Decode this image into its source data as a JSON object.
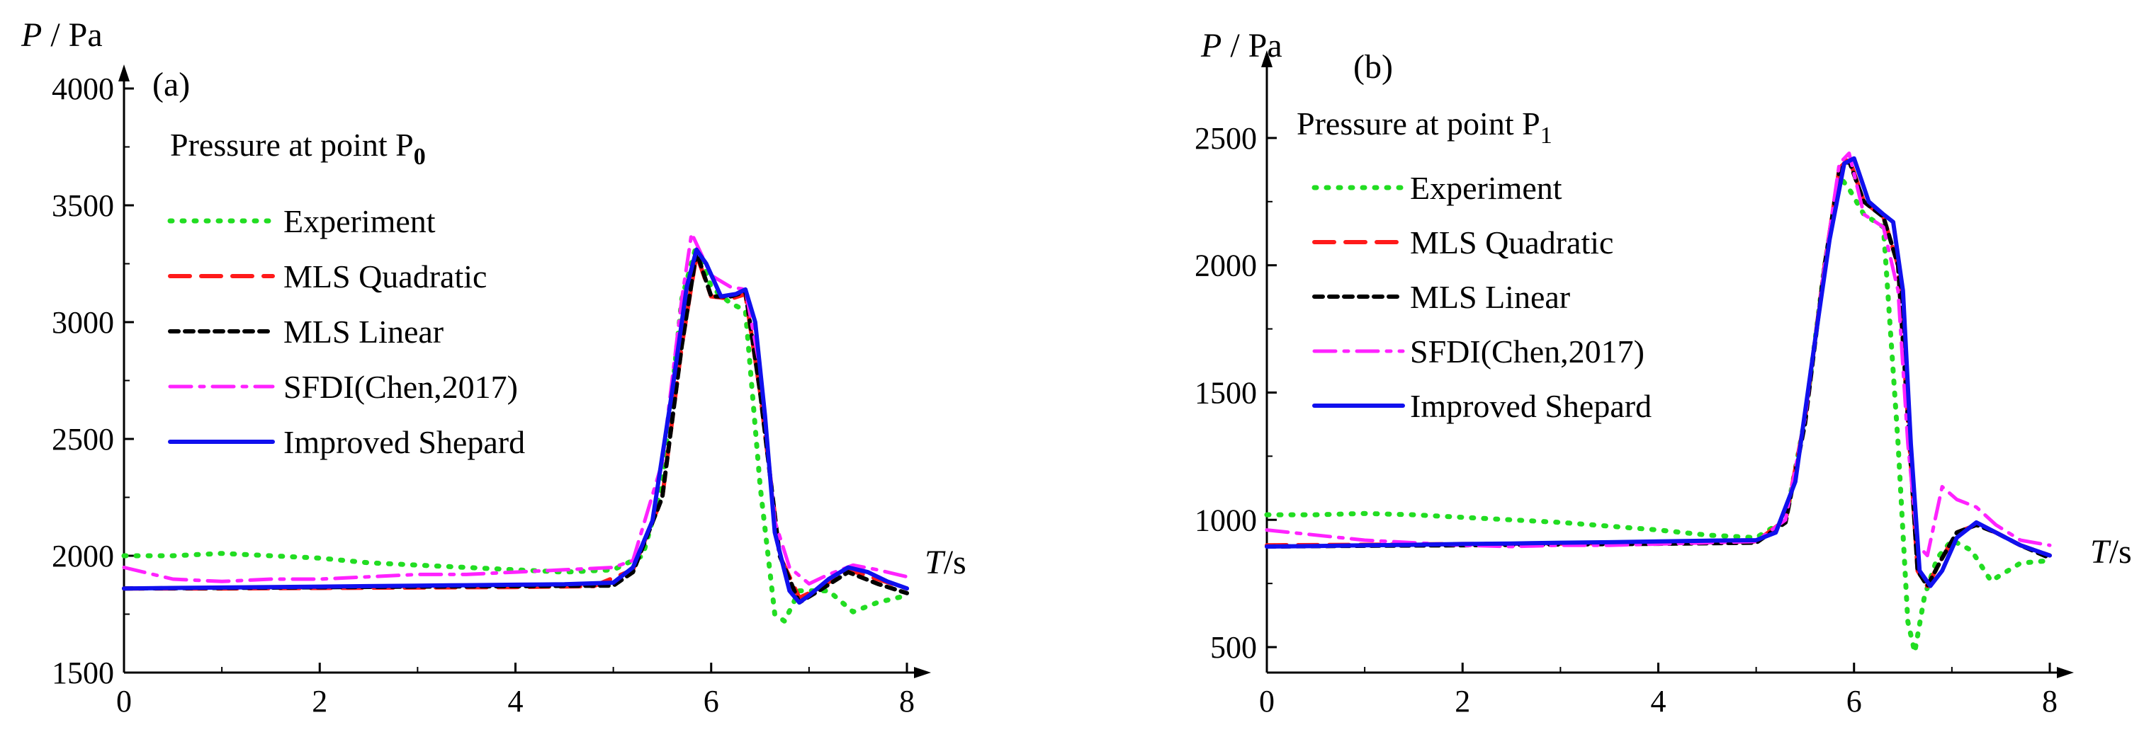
{
  "chart_data": [
    {
      "type": "line",
      "panel_label": "(a)",
      "title_main": "Pressure at point P",
      "title_sub": "0",
      "ylabel_var": "P",
      "ylabel_unit": " / Pa",
      "xlabel_var": "T",
      "xlabel_unit": "/s",
      "xlim": [
        0,
        8
      ],
      "ylim": [
        1500,
        4000
      ],
      "xticks": [
        0,
        2,
        4,
        6,
        8
      ],
      "yticks": [
        1500,
        2000,
        2500,
        3000,
        3500,
        4000
      ],
      "xtick_labels": [
        "0",
        "2",
        "4",
        "6",
        "8"
      ],
      "ytick_labels": [
        "1500",
        "2000",
        "2500",
        "3000",
        "3500",
        "4000"
      ],
      "legend_position": "top-left",
      "series": [
        {
          "name": "Experiment",
          "color": "#22dd22",
          "dash": "dotted",
          "x": [
            0,
            0.5,
            1.0,
            1.5,
            2.0,
            2.5,
            3.0,
            3.5,
            4.0,
            4.5,
            5.0,
            5.3,
            5.5,
            5.7,
            5.85,
            6.0,
            6.2,
            6.35,
            6.5,
            6.65,
            6.75,
            6.9,
            7.2,
            7.45,
            7.7,
            8.0
          ],
          "y": [
            2000,
            2000,
            2010,
            2000,
            1990,
            1970,
            1960,
            1950,
            1940,
            1930,
            1940,
            2000,
            2300,
            3100,
            3330,
            3150,
            3080,
            3050,
            2300,
            1750,
            1720,
            1850,
            1850,
            1760,
            1800,
            1830
          ]
        },
        {
          "name": "MLS Quadratic",
          "color": "#ff1a1a",
          "dash": "dashed",
          "x": [
            0,
            1,
            2,
            3,
            4,
            4.8,
            5.2,
            5.5,
            5.7,
            5.85,
            6.0,
            6.2,
            6.35,
            6.5,
            6.7,
            6.9,
            7.1,
            7.4,
            7.7,
            8.0
          ],
          "y": [
            1860,
            1860,
            1862,
            1864,
            1866,
            1870,
            1940,
            2250,
            2900,
            3290,
            3110,
            3100,
            3120,
            2700,
            2000,
            1820,
            1860,
            1940,
            1900,
            1860
          ]
        },
        {
          "name": "MLS Linear",
          "color": "#000000",
          "dash": "shortdash",
          "x": [
            0,
            1,
            2,
            3,
            4,
            5.0,
            5.2,
            5.5,
            5.7,
            5.85,
            6.0,
            6.2,
            6.35,
            6.5,
            6.7,
            6.9,
            7.1,
            7.4,
            7.7,
            8.0
          ],
          "y": [
            1860,
            1862,
            1865,
            1868,
            1870,
            1872,
            1930,
            2250,
            2900,
            3300,
            3110,
            3110,
            3130,
            2700,
            2000,
            1800,
            1850,
            1930,
            1880,
            1840
          ]
        },
        {
          "name": "SFDI(Chen,2017)",
          "color": "#ff22ff",
          "dash": "dashdot",
          "x": [
            0,
            0.5,
            1.0,
            1.5,
            2.0,
            2.5,
            3.0,
            3.5,
            4.0,
            4.5,
            5.0,
            5.2,
            5.5,
            5.7,
            5.8,
            6.0,
            6.2,
            6.35,
            6.5,
            6.65,
            6.8,
            7.0,
            7.2,
            7.45,
            7.7,
            8.0
          ],
          "y": [
            1950,
            1900,
            1890,
            1900,
            1900,
            1910,
            1920,
            1920,
            1930,
            1940,
            1950,
            1980,
            2400,
            3100,
            3380,
            3200,
            3150,
            3140,
            2800,
            2150,
            1950,
            1880,
            1920,
            1960,
            1940,
            1910
          ]
        },
        {
          "name": "Improved Shepard",
          "color": "#1010ee",
          "dash": "solid",
          "x": [
            0,
            0.5,
            1.0,
            1.5,
            2.0,
            2.5,
            3.0,
            3.5,
            4.0,
            4.5,
            5.0,
            5.2,
            5.4,
            5.6,
            5.75,
            5.85,
            5.95,
            6.1,
            6.25,
            6.35,
            6.45,
            6.55,
            6.65,
            6.8,
            6.9,
            7.0,
            7.2,
            7.4,
            7.6,
            7.8,
            8.0
          ],
          "y": [
            1860,
            1862,
            1864,
            1866,
            1868,
            1870,
            1872,
            1874,
            1876,
            1878,
            1885,
            1950,
            2150,
            2700,
            3150,
            3310,
            3250,
            3110,
            3120,
            3140,
            3000,
            2600,
            2100,
            1850,
            1800,
            1830,
            1900,
            1950,
            1930,
            1890,
            1860
          ]
        }
      ]
    },
    {
      "type": "line",
      "panel_label": "(b)",
      "title_main": "Pressure at point P",
      "title_sub": "1",
      "ylabel_var": "P",
      "ylabel_unit": " / Pa",
      "xlabel_var": "T",
      "xlabel_unit": "/s",
      "xlim": [
        0,
        8
      ],
      "ylim": [
        400,
        2750
      ],
      "xticks": [
        0,
        2,
        4,
        6,
        8
      ],
      "yticks": [
        500,
        1000,
        1500,
        2000,
        2500
      ],
      "xtick_labels": [
        "0",
        "2",
        "4",
        "6",
        "8"
      ],
      "ytick_labels": [
        "500",
        "1000",
        "1500",
        "2000",
        "2500"
      ],
      "legend_position": "top-left",
      "series": [
        {
          "name": "Experiment",
          "color": "#22dd22",
          "dash": "dotted",
          "x": [
            0,
            0.5,
            1.0,
            1.5,
            2.0,
            2.5,
            3.0,
            3.5,
            4.0,
            4.5,
            5.0,
            5.3,
            5.5,
            5.7,
            5.85,
            5.95,
            6.1,
            6.3,
            6.45,
            6.55,
            6.62,
            6.72,
            6.85,
            7.0,
            7.2,
            7.4,
            7.7,
            8.0
          ],
          "y": [
            1020,
            1020,
            1025,
            1020,
            1010,
            1000,
            990,
            975,
            960,
            940,
            930,
            1000,
            1400,
            2000,
            2350,
            2300,
            2200,
            2150,
            1300,
            600,
            480,
            700,
            850,
            920,
            880,
            760,
            830,
            840
          ]
        },
        {
          "name": "MLS Quadratic",
          "color": "#ff1a1a",
          "dash": "dashed",
          "x": [
            0,
            1,
            2,
            3,
            4,
            5.0,
            5.3,
            5.5,
            5.7,
            5.85,
            5.95,
            6.1,
            6.3,
            6.45,
            6.55,
            6.65,
            6.75,
            6.9,
            7.05,
            7.25,
            7.45,
            7.7,
            8.0
          ],
          "y": [
            900,
            902,
            905,
            907,
            910,
            915,
            1000,
            1400,
            2000,
            2380,
            2420,
            2250,
            2190,
            2000,
            1400,
            800,
            740,
            850,
            950,
            980,
            950,
            900,
            860
          ]
        },
        {
          "name": "MLS Linear",
          "color": "#000000",
          "dash": "shortdash",
          "x": [
            0,
            1,
            2,
            3,
            4,
            5.0,
            5.3,
            5.5,
            5.7,
            5.85,
            5.95,
            6.1,
            6.3,
            6.45,
            6.55,
            6.65,
            6.75,
            6.9,
            7.05,
            7.25,
            7.45,
            7.7,
            8.0
          ],
          "y": [
            895,
            898,
            900,
            903,
            906,
            910,
            990,
            1380,
            2000,
            2370,
            2410,
            2250,
            2190,
            2000,
            1400,
            800,
            740,
            850,
            950,
            980,
            950,
            900,
            850
          ]
        },
        {
          "name": "SFDI(Chen,2017)",
          "color": "#ff22ff",
          "dash": "dashdot",
          "x": [
            0,
            0.5,
            1.0,
            1.5,
            2.0,
            2.5,
            3.0,
            3.5,
            4.0,
            4.5,
            5.0,
            5.3,
            5.5,
            5.7,
            5.85,
            5.95,
            6.1,
            6.3,
            6.45,
            6.55,
            6.65,
            6.75,
            6.9,
            7.05,
            7.25,
            7.45,
            7.7,
            8.0
          ],
          "y": [
            960,
            940,
            920,
            910,
            900,
            895,
            900,
            900,
            905,
            910,
            915,
            1000,
            1400,
            2000,
            2400,
            2440,
            2200,
            2150,
            1900,
            1300,
            900,
            860,
            1130,
            1080,
            1050,
            980,
            920,
            900
          ]
        },
        {
          "name": "Improved Shepard",
          "color": "#1010ee",
          "dash": "solid",
          "x": [
            0,
            0.5,
            1.0,
            1.5,
            2.0,
            2.5,
            3.0,
            3.5,
            4.0,
            4.5,
            5.0,
            5.2,
            5.4,
            5.6,
            5.75,
            5.9,
            6.0,
            6.15,
            6.3,
            6.4,
            6.5,
            6.58,
            6.67,
            6.78,
            6.9,
            7.05,
            7.25,
            7.45,
            7.7,
            8.0
          ],
          "y": [
            895,
            897,
            900,
            902,
            905,
            907,
            910,
            912,
            915,
            918,
            920,
            950,
            1150,
            1700,
            2100,
            2400,
            2420,
            2250,
            2200,
            2170,
            1900,
            1300,
            800,
            740,
            800,
            930,
            990,
            950,
            900,
            860
          ]
        }
      ]
    }
  ]
}
